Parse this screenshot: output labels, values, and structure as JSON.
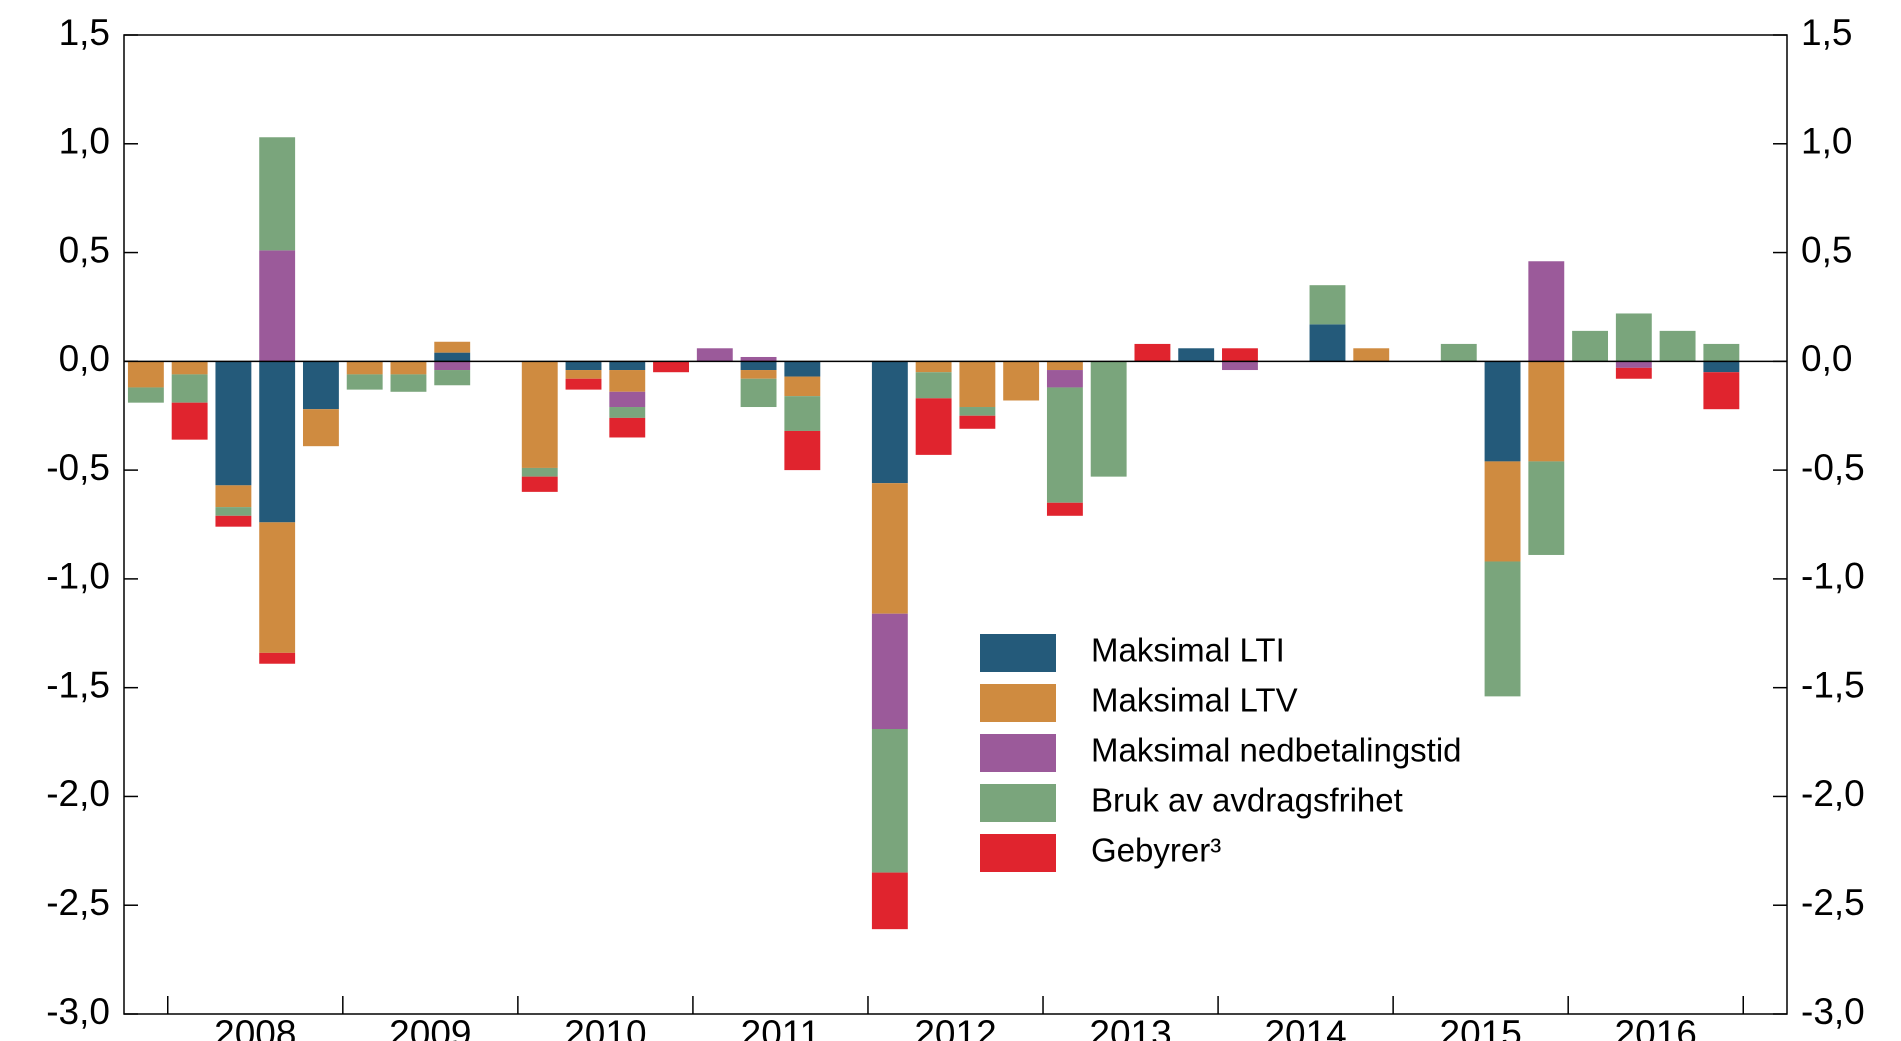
{
  "chart_data": {
    "type": "stacked_bar",
    "x_labels": [
      "2008",
      "2009",
      "2010",
      "2011",
      "2012",
      "2013",
      "2014",
      "2015",
      "2016"
    ],
    "series": [
      {
        "name": "Maksimal LTI",
        "color": "#245a7a",
        "values": [
          0,
          0,
          -0.57,
          -0.74,
          -0.22,
          0,
          0,
          0.04,
          0,
          0,
          -0.04,
          -0.04,
          0,
          0,
          -0.04,
          -0.07,
          0,
          -0.56,
          0,
          0,
          0,
          0,
          0,
          0,
          0.06,
          0,
          0,
          0.17,
          0,
          0,
          0,
          -0.46,
          0,
          0,
          0,
          0,
          -0.05
        ]
      },
      {
        "name": "Maksimal LTV",
        "color": "#cf8b40",
        "values": [
          -0.12,
          -0.06,
          -0.1,
          -0.6,
          -0.17,
          -0.06,
          -0.06,
          0.05,
          0,
          -0.49,
          -0.04,
          -0.1,
          0,
          0,
          -0.04,
          -0.09,
          0,
          -0.6,
          -0.05,
          -0.21,
          -0.18,
          -0.04,
          0,
          0,
          0,
          0,
          0,
          0,
          0.06,
          0,
          0,
          -0.46,
          -0.46,
          0,
          0,
          0,
          0
        ]
      },
      {
        "name": "Maksimal nedbetalingstid",
        "color": "#9b5a9a",
        "values": [
          0,
          0,
          0,
          0.51,
          0,
          0,
          0,
          -0.04,
          0,
          0,
          0,
          -0.07,
          0,
          0.06,
          0.02,
          0,
          0,
          -0.53,
          0,
          0,
          0,
          -0.08,
          0,
          0,
          0,
          -0.04,
          0,
          0,
          0,
          0,
          0,
          0,
          0.46,
          0,
          -0.03,
          0,
          0
        ]
      },
      {
        "name": "Bruk av avdragsfrihet",
        "color": "#7aa57c",
        "values": [
          -0.07,
          -0.13,
          -0.04,
          0.52,
          0,
          -0.07,
          -0.08,
          -0.07,
          0,
          -0.04,
          0,
          -0.05,
          0,
          0,
          -0.13,
          -0.16,
          0,
          -0.66,
          -0.12,
          -0.04,
          0,
          -0.53,
          -0.53,
          0,
          0,
          0,
          0,
          0.18,
          0,
          0,
          0.08,
          -0.62,
          -0.43,
          0.14,
          0.22,
          0.14,
          0.08
        ]
      },
      {
        "name": "Gebyrer³",
        "color": "#e0242e",
        "values": [
          0,
          -0.17,
          -0.05,
          -0.05,
          0,
          0,
          0,
          0,
          0,
          -0.07,
          -0.05,
          -0.09,
          -0.05,
          0,
          0,
          -0.18,
          0,
          -0.26,
          -0.26,
          -0.06,
          0,
          -0.06,
          0,
          0.08,
          0,
          0.06,
          0,
          0,
          0,
          0,
          0,
          0,
          0,
          0,
          -0.05,
          0,
          -0.17
        ]
      }
    ],
    "ylim": [
      -3,
      1.5
    ],
    "yticks": [
      {
        "value": -3,
        "label": "-3,0"
      },
      {
        "value": -2.5,
        "label": "-2,5"
      },
      {
        "value": -2,
        "label": "-2,0"
      },
      {
        "value": -1.5,
        "label": "-1,5"
      },
      {
        "value": -1,
        "label": "-1,0"
      },
      {
        "value": -0.5,
        "label": "-0,5"
      },
      {
        "value": 0,
        "label": "0,0"
      },
      {
        "value": 0.5,
        "label": "0,5"
      },
      {
        "value": 1,
        "label": "1,0"
      },
      {
        "value": 1.5,
        "label": "1,5"
      }
    ],
    "y2lim": [
      -3,
      1.5
    ],
    "y2ticks": [
      {
        "value": -3,
        "label": "-3,0"
      },
      {
        "value": -2.5,
        "label": "-2,5"
      },
      {
        "value": -2,
        "label": "-2,0"
      },
      {
        "value": -1.5,
        "label": "-1,5"
      },
      {
        "value": -1,
        "label": "-1,0"
      },
      {
        "value": -0.5,
        "label": "-0,5"
      },
      {
        "value": 0,
        "label": "0,0"
      },
      {
        "value": 0.5,
        "label": "0,5"
      },
      {
        "value": 1,
        "label": "1,0"
      },
      {
        "value": 1.5,
        "label": "1,5"
      }
    ]
  }
}
